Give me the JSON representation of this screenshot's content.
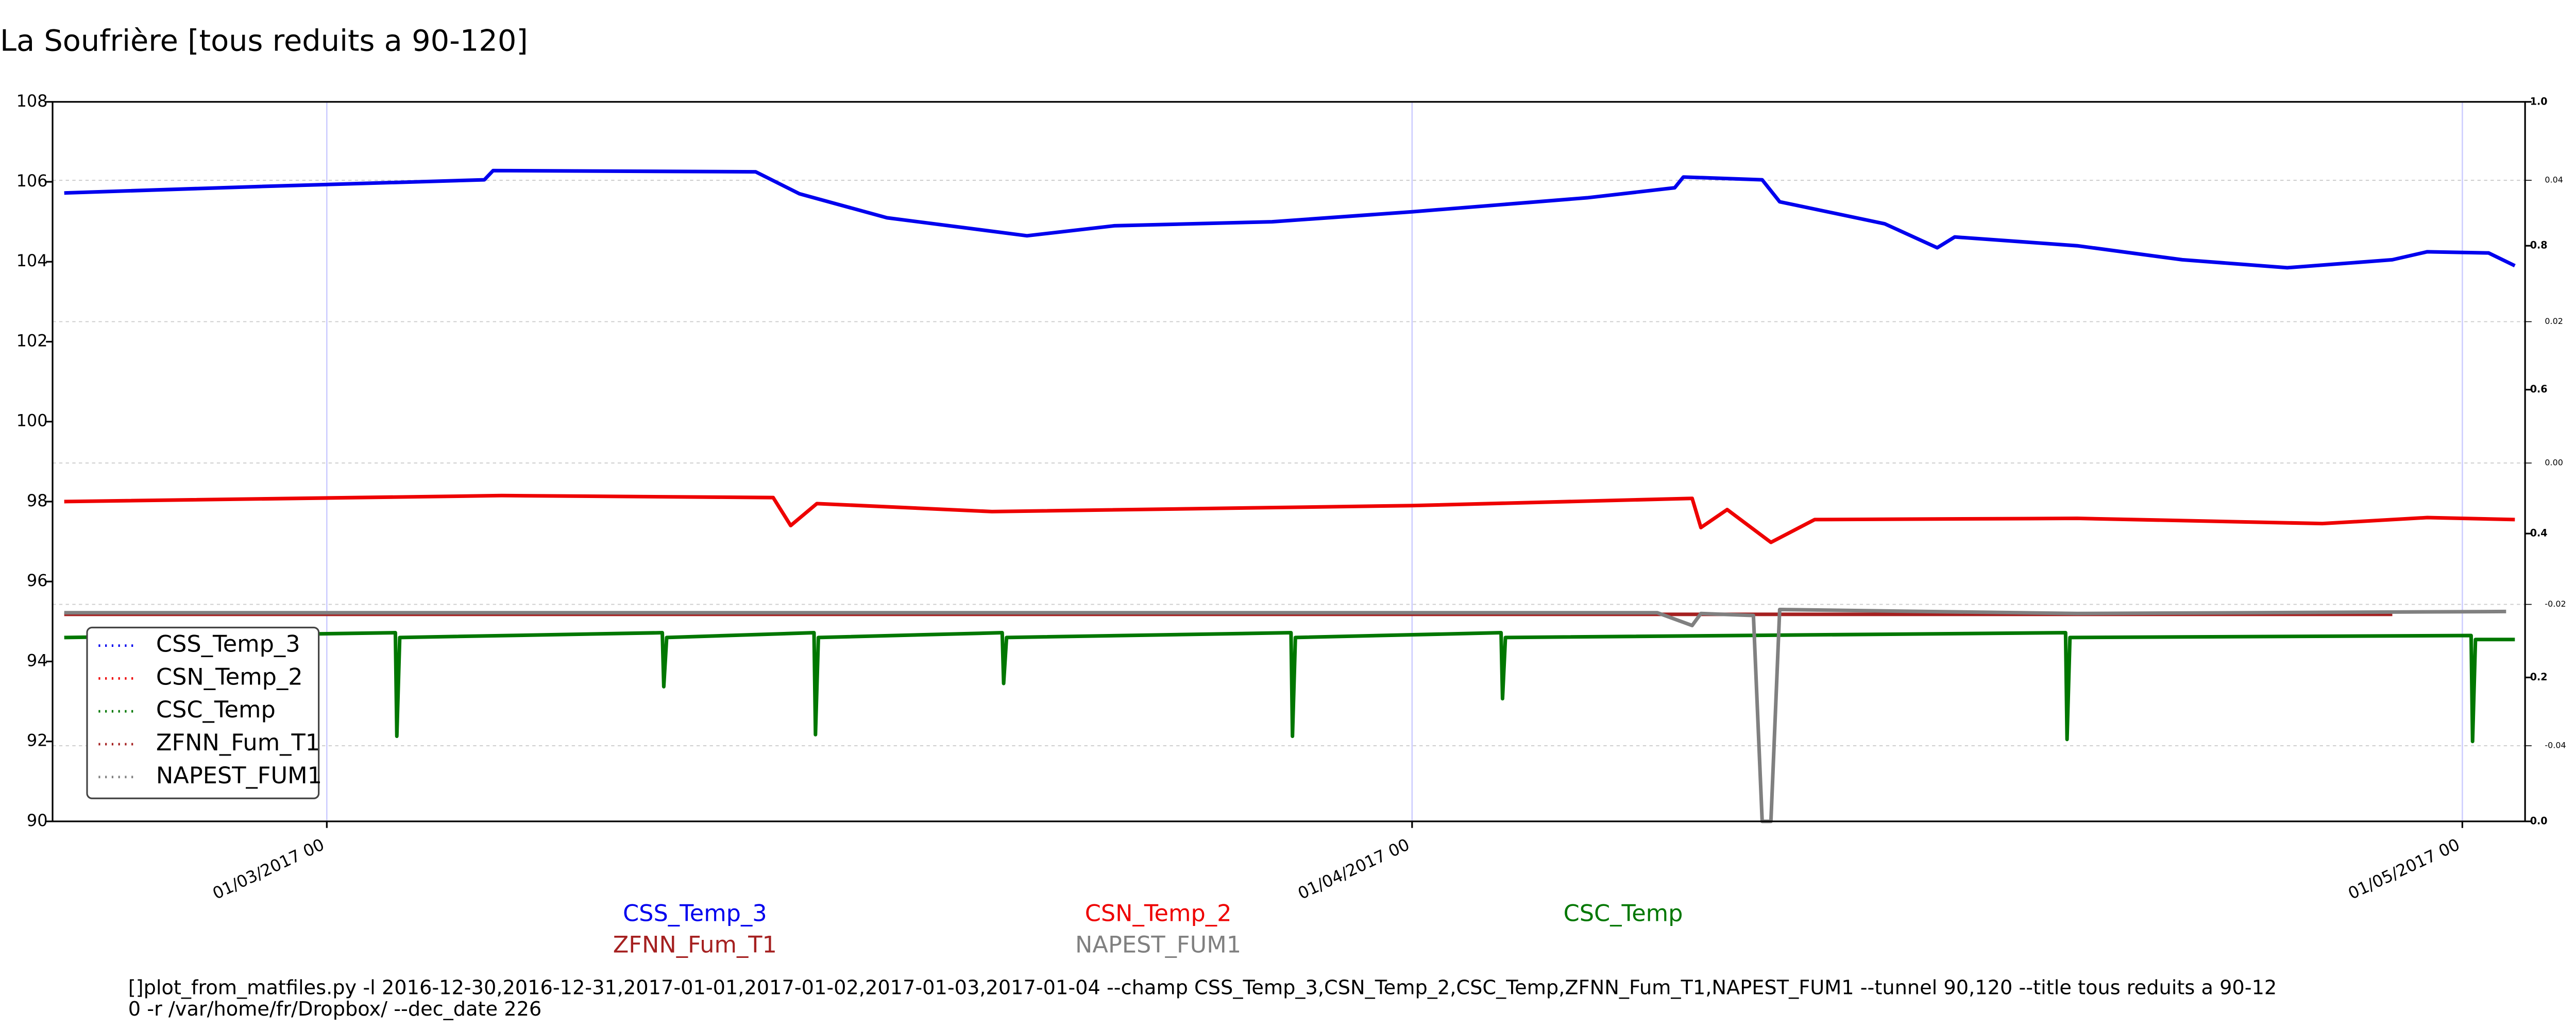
{
  "chart_data": {
    "type": "line",
    "title": "La Soufrière [tous reduits a 90-120]",
    "xlim": [
      "2017-02-21T04:00",
      "2017-05-02T19:00"
    ],
    "xticks": [
      {
        "value": "2017-03-01T00:00",
        "label": "01/03/2017 00"
      },
      {
        "value": "2017-04-01T00:00",
        "label": "01/04/2017 00"
      },
      {
        "value": "2017-05-01T00:00",
        "label": "01/05/2017 00"
      }
    ],
    "ylim": [
      90,
      108
    ],
    "yticks": [
      90,
      92,
      94,
      96,
      98,
      100,
      102,
      104,
      106,
      108
    ],
    "y2lim": [
      0,
      1
    ],
    "y2ticks": [
      {
        "value": 0,
        "label": "0.0"
      },
      {
        "value": 0.2,
        "label": "0.2"
      },
      {
        "value": 0.4,
        "label": "0.4"
      },
      {
        "value": 0.6,
        "label": "0.6"
      },
      {
        "value": 0.8,
        "label": "0.8"
      },
      {
        "value": 1,
        "label": "1.0"
      }
    ],
    "y3lim": [
      -0.0507,
      0.0511
    ],
    "y3ticks": [
      -0.04,
      -0.02,
      {
        "value": 0,
        "label": "0.00"
      },
      0.02,
      0.04
    ],
    "grid": true,
    "legend": "lower left",
    "series": [
      {
        "name": "CSS_Temp_3",
        "color": "#0000ee",
        "x": [
          "2017-02-21T12:00",
          "2017-02-27T00:00",
          "2017-03-05T12:00",
          "2017-03-05T18:00",
          "2017-03-13T06:00",
          "2017-03-14T12:00",
          "2017-03-17T00:00",
          "2017-03-21T00:00",
          "2017-03-23T12:00",
          "2017-03-28T00:00",
          "2017-04-01T00:00",
          "2017-04-06T00:00",
          "2017-04-08T12:00",
          "2017-04-08T18:00",
          "2017-04-11T00:00",
          "2017-04-11T12:00",
          "2017-04-14T12:00",
          "2017-04-16T00:00",
          "2017-04-16T12:00",
          "2017-04-20T00:00",
          "2017-04-23T00:00",
          "2017-04-26T00:00",
          "2017-04-29T00:00",
          "2017-04-30T00:00",
          "2017-05-01T18:00",
          "2017-05-02T12:00"
        ],
        "values": [
          105.72,
          105.88,
          106.05,
          106.28,
          106.25,
          105.7,
          105.1,
          104.65,
          104.9,
          105.0,
          105.25,
          105.6,
          105.85,
          106.12,
          106.05,
          105.5,
          104.95,
          104.35,
          104.62,
          104.4,
          104.05,
          103.85,
          104.05,
          104.25,
          104.22,
          103.9
        ]
      },
      {
        "name": "CSN_Temp_2",
        "color": "#ee0000",
        "x": [
          "2017-02-21T12:00",
          "2017-03-06T00:00",
          "2017-03-13T18:00",
          "2017-03-14T06:00",
          "2017-03-15T00:00",
          "2017-03-20T00:00",
          "2017-04-01T00:00",
          "2017-04-09T00:00",
          "2017-04-09T06:00",
          "2017-04-10T00:00",
          "2017-04-11T06:00",
          "2017-04-12T12:00",
          "2017-04-20T00:00",
          "2017-04-27T00:00",
          "2017-04-30T00:00",
          "2017-05-02T12:00"
        ],
        "values": [
          98.0,
          98.15,
          98.1,
          97.4,
          97.95,
          97.75,
          97.9,
          98.08,
          97.35,
          97.8,
          96.98,
          97.55,
          97.58,
          97.45,
          97.6,
          97.55
        ]
      },
      {
        "name": "CSC_Temp",
        "color": "#007700",
        "x": [
          "2017-02-21T12:00",
          "2017-03-02T23:00",
          "2017-03-03T00:00",
          "2017-03-03T02:00",
          "2017-03-10T14:00",
          "2017-03-10T15:00",
          "2017-03-10T17:00",
          "2017-03-14T22:00",
          "2017-03-14T23:00",
          "2017-03-15T01:00",
          "2017-03-20T07:00",
          "2017-03-20T08:00",
          "2017-03-20T10:00",
          "2017-03-28T13:00",
          "2017-03-28T14:00",
          "2017-03-28T16:00",
          "2017-04-03T13:00",
          "2017-04-03T14:00",
          "2017-04-03T16:00",
          "2017-04-19T16:00",
          "2017-04-19T17:00",
          "2017-04-19T19:00",
          "2017-05-01T06:00",
          "2017-05-01T07:00",
          "2017-05-01T09:00",
          "2017-05-02T12:00"
        ],
        "values": [
          94.6,
          94.72,
          92.13,
          94.6,
          94.72,
          93.37,
          94.6,
          94.72,
          92.17,
          94.6,
          94.72,
          93.45,
          94.6,
          94.72,
          92.13,
          94.6,
          94.72,
          93.07,
          94.6,
          94.72,
          92.05,
          94.6,
          94.65,
          92.0,
          94.55,
          94.55
        ]
      },
      {
        "name": "ZFNN_Fum_T1",
        "color": "#a52020",
        "x": [
          "2017-02-21T12:00",
          "2017-04-29T00:00"
        ],
        "values": [
          95.18,
          95.18
        ]
      },
      {
        "name": "NAPEST_FUM1",
        "color": "#808080",
        "x": [
          "2017-02-21T12:00",
          "2017-04-08T00:00",
          "2017-04-09T00:00",
          "2017-04-09T06:00",
          "2017-04-10T18:00",
          "2017-04-11T00:00",
          "2017-04-11T06:00",
          "2017-04-11T12:00",
          "2017-04-20T00:00",
          "2017-05-02T06:00"
        ],
        "values": [
          95.22,
          95.22,
          94.9,
          95.2,
          95.15,
          90.0,
          90.0,
          95.3,
          95.2,
          95.25
        ]
      }
    ],
    "command": [
      "[]plot_from_matfiles.py -l 2016-12-30,2016-12-31,2017-01-01,2017-01-02,2017-01-03,2017-01-04 --champ CSS_Temp_3,CSN_Temp_2,CSC_Temp,ZFNN_Fum_T1,NAPEST_FUM1 --tunnel 90,120 --title tous reduits a 90-12",
      "0 -r /var/home/fr/Dropbox/ --dec_date 226"
    ]
  }
}
